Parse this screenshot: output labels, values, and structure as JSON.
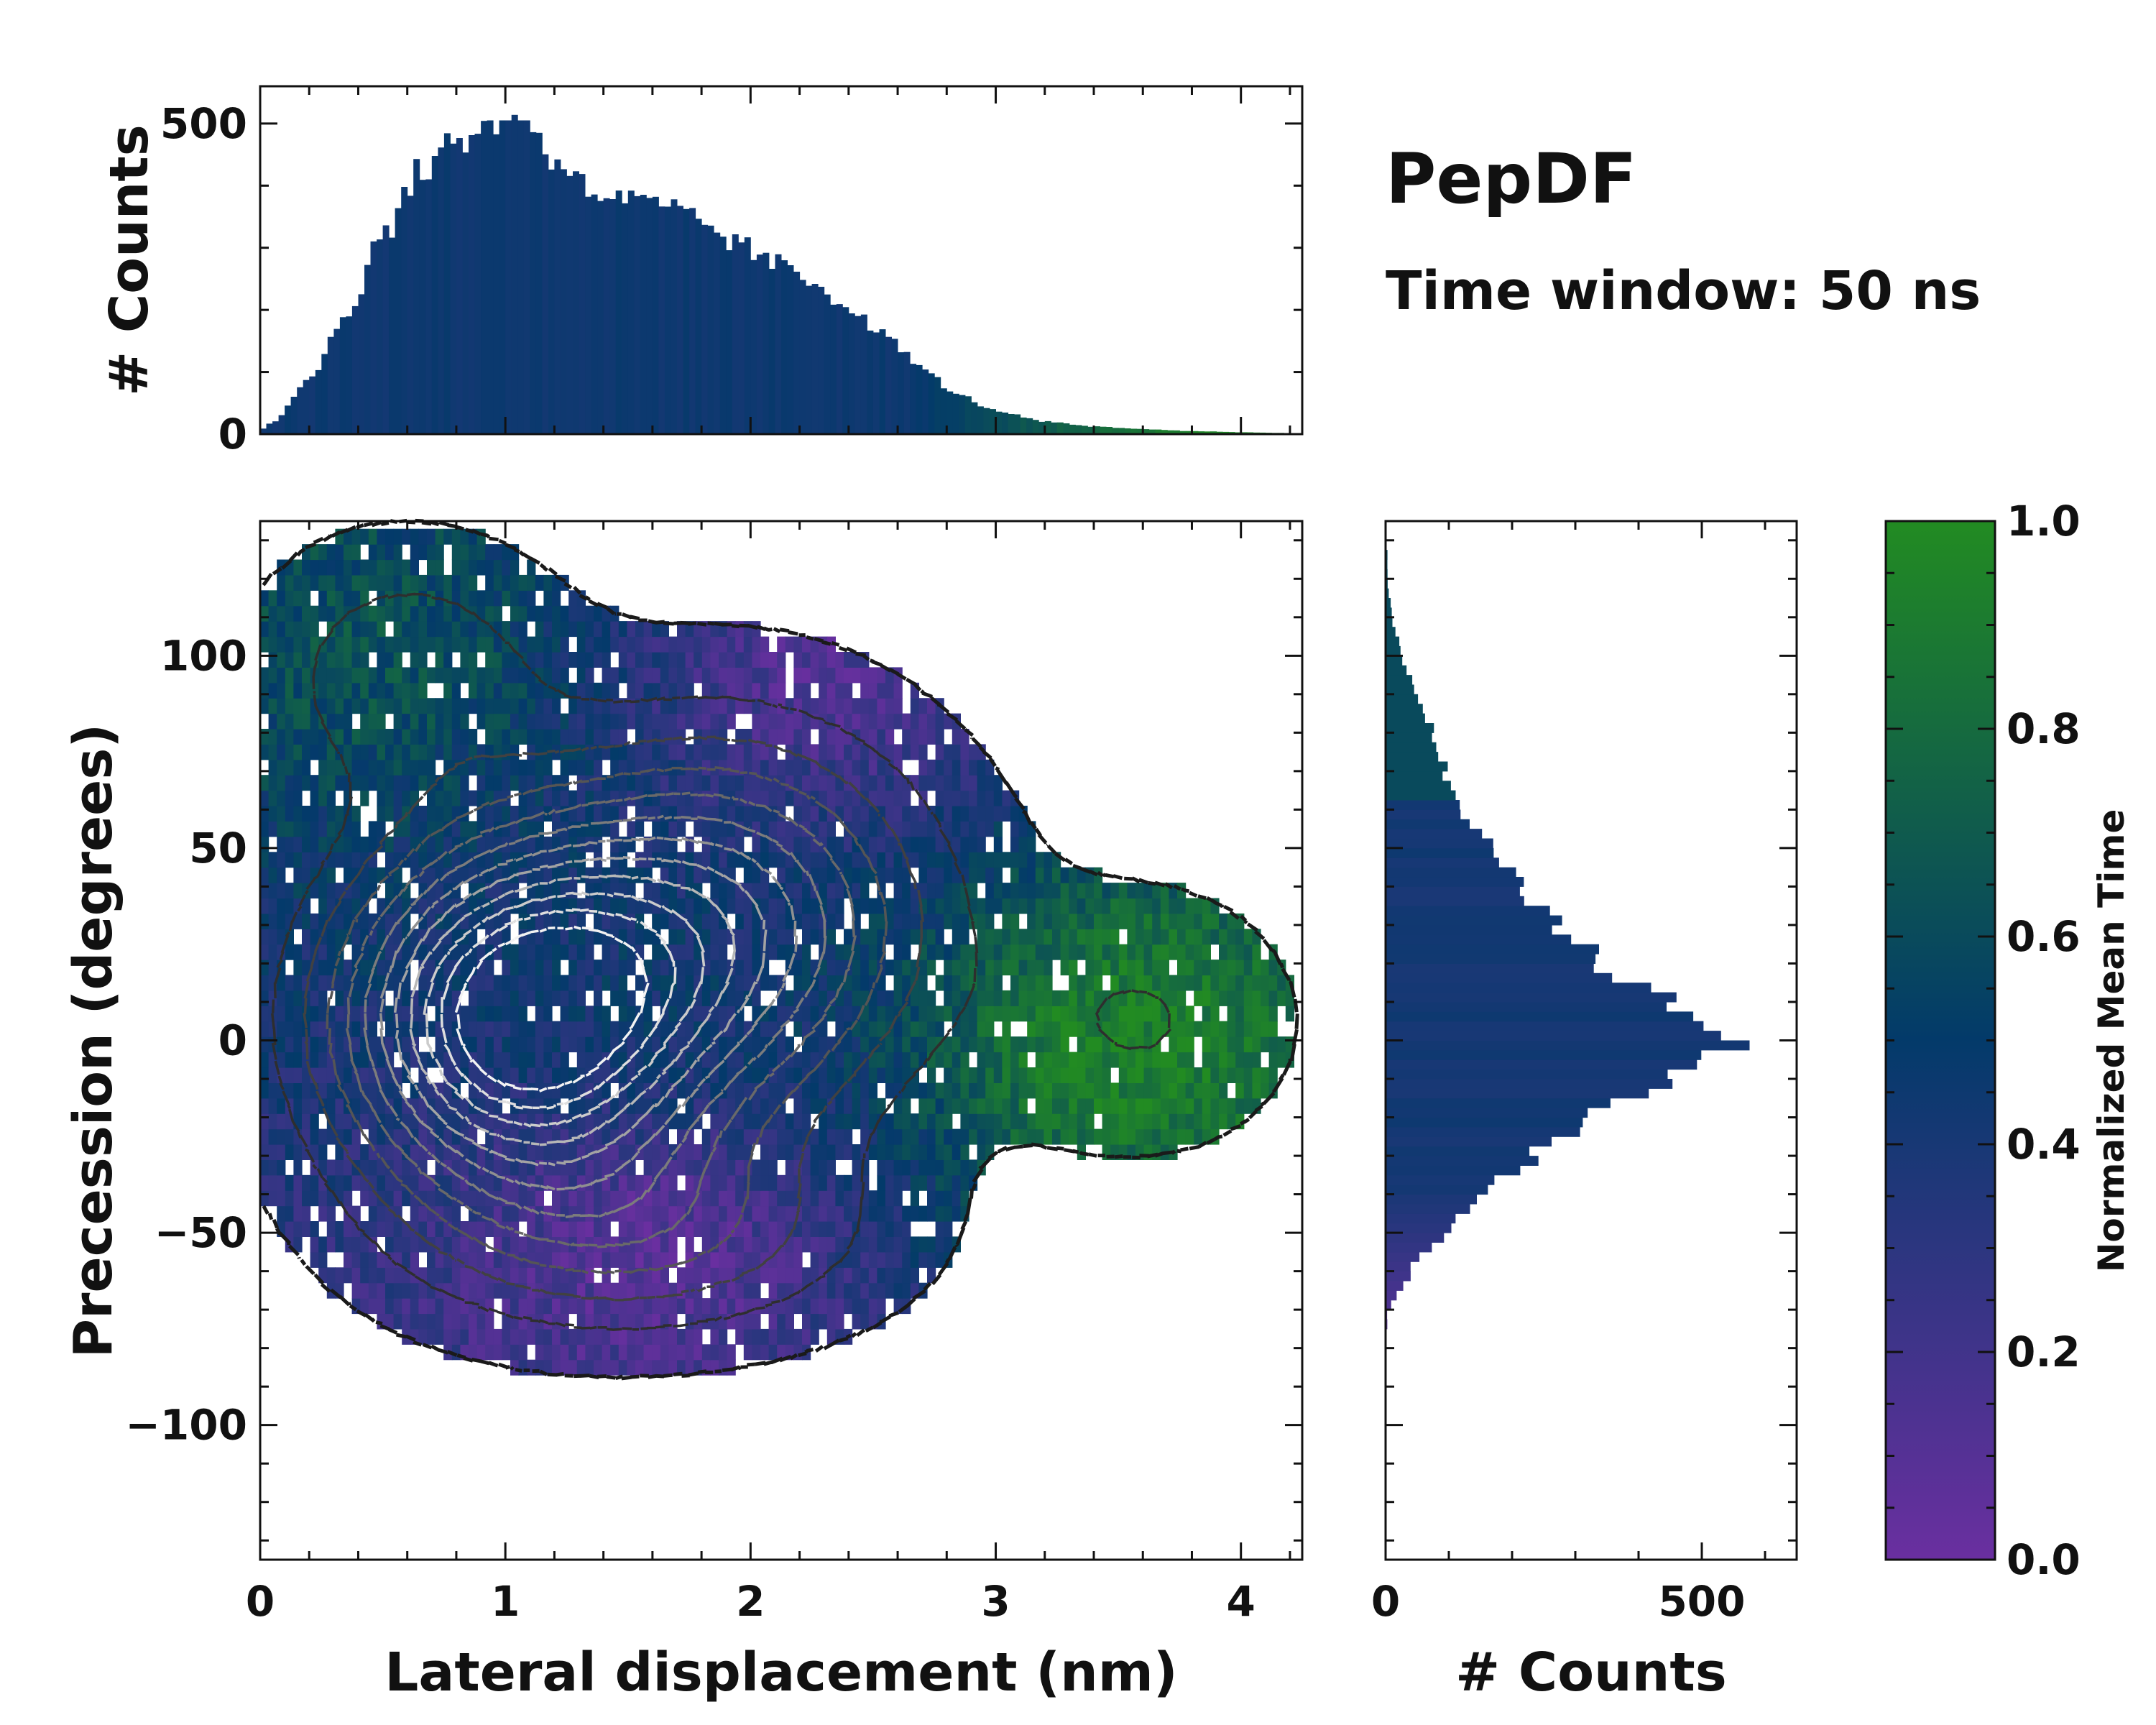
{
  "figure": {
    "title": "PepDF",
    "subtitle": "Time window: 50 ns"
  },
  "colors": {
    "cmap_low": "#6a2fa0",
    "cmap_mid": "#033a6a",
    "cmap_high": "#228b22",
    "contour_dark": "#1a1a1a",
    "contour_light": "#f2f2f2"
  },
  "chart_data": [
    {
      "id": "joint",
      "type": "heatmap",
      "xlabel": "Lateral displacement (nm)",
      "ylabel": "Precession (degrees)",
      "xlim": [
        0,
        4.25
      ],
      "ylim": [
        -135,
        135
      ],
      "xticks": [
        0,
        1,
        2,
        3,
        4
      ],
      "yticks": [
        -100,
        -50,
        0,
        50,
        100
      ],
      "xtick_labels": [
        "0",
        "1",
        "2",
        "3",
        "4"
      ],
      "ytick_labels": [
        "−100",
        "−50",
        "0",
        "50",
        "100"
      ],
      "density_blobs": [
        {
          "cx": 1.05,
          "cy": 5,
          "sx": 0.48,
          "sy": 30,
          "w": 1.0
        },
        {
          "cx": 1.9,
          "cy": 30,
          "sx": 0.55,
          "sy": 33,
          "w": 0.55
        },
        {
          "cx": 0.6,
          "cy": 95,
          "sx": 0.4,
          "sy": 22,
          "w": 0.18
        },
        {
          "cx": 3.6,
          "cy": 5,
          "sx": 0.4,
          "sy": 22,
          "w": 0.12
        },
        {
          "cx": 1.6,
          "cy": -50,
          "sx": 0.6,
          "sy": 18,
          "w": 0.25
        }
      ],
      "time_regions": [
        {
          "description": "upper-left",
          "cx": 0.5,
          "cy": 100,
          "value": 0.65
        },
        {
          "description": "center",
          "cx": 1.5,
          "cy": 10,
          "value": 0.45
        },
        {
          "description": "lower band",
          "cx": 1.6,
          "cy": -55,
          "value": 0.08
        },
        {
          "description": "upper-right",
          "cx": 2.3,
          "cy": 95,
          "value": 0.12
        },
        {
          "description": "right lobe",
          "cx": 3.5,
          "cy": 0,
          "value": 0.95
        }
      ],
      "contour_levels": 12
    },
    {
      "id": "top-marginal",
      "type": "bar",
      "ylabel": "# Counts",
      "xlim": [
        0,
        4.25
      ],
      "ylim": [
        0,
        560
      ],
      "yticks": [
        0,
        500
      ],
      "ytick_labels": [
        "0",
        "500"
      ],
      "bin_width": 0.025,
      "x": [
        0.05,
        0.2,
        0.35,
        0.5,
        0.65,
        0.8,
        0.95,
        1.05,
        1.2,
        1.35,
        1.5,
        1.65,
        1.8,
        1.95,
        2.1,
        2.25,
        2.4,
        2.55,
        2.7,
        2.85,
        3.0,
        3.2,
        3.4,
        3.6,
        3.8,
        4.0,
        4.15
      ],
      "values": [
        20,
        90,
        190,
        320,
        420,
        475,
        495,
        500,
        450,
        390,
        375,
        365,
        340,
        305,
        275,
        245,
        205,
        160,
        105,
        62,
        38,
        20,
        12,
        8,
        5,
        3,
        2
      ],
      "peak_value": 505
    },
    {
      "id": "right-marginal",
      "type": "bar",
      "orientation": "horizontal",
      "xlabel": "# Counts",
      "xlim": [
        0,
        650
      ],
      "ylim": [
        -135,
        135
      ],
      "xticks": [
        0,
        500
      ],
      "xtick_labels": [
        "0",
        "500"
      ],
      "bin_width": 2.5,
      "y": [
        -70,
        -60,
        -50,
        -40,
        -30,
        -20,
        -10,
        0,
        10,
        20,
        30,
        40,
        50,
        60,
        70,
        80,
        90,
        100,
        110,
        120
      ],
      "values": [
        8,
        40,
        95,
        150,
        230,
        330,
        450,
        560,
        460,
        345,
        265,
        210,
        165,
        120,
        95,
        75,
        48,
        25,
        10,
        3
      ],
      "peak_value": 590
    },
    {
      "id": "colorbar",
      "type": "colorbar",
      "label": "Normalized Mean Time",
      "lim": [
        0.0,
        1.0
      ],
      "ticks": [
        0.0,
        0.2,
        0.4,
        0.6,
        0.8,
        1.0
      ],
      "tick_labels": [
        "0.0",
        "0.2",
        "0.4",
        "0.6",
        "0.8",
        "1.0"
      ]
    }
  ]
}
